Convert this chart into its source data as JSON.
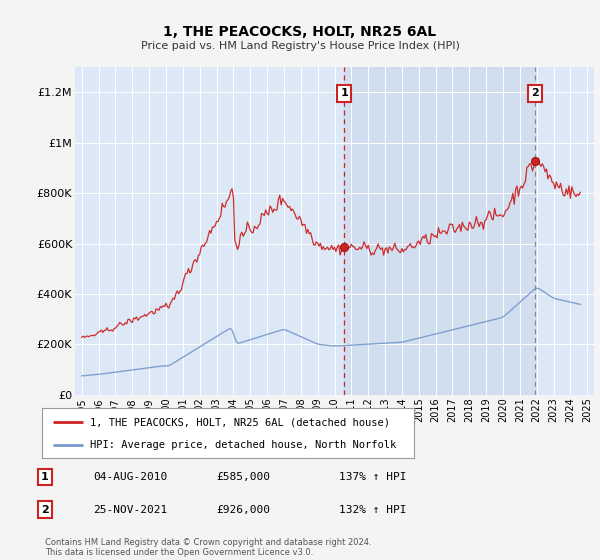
{
  "title": "1, THE PEACOCKS, HOLT, NR25 6AL",
  "subtitle": "Price paid vs. HM Land Registry's House Price Index (HPI)",
  "ylabel_ticks": [
    "£0",
    "£200K",
    "£400K",
    "£600K",
    "£800K",
    "£1M",
    "£1.2M"
  ],
  "ylabel_values": [
    0,
    200000,
    400000,
    600000,
    800000,
    1000000,
    1200000
  ],
  "ylim": [
    0,
    1300000
  ],
  "sale_color": "#cc2222",
  "hpi_color": "#7799cc",
  "fig_bg": "#f4f4f4",
  "plot_bg": "#dce8f5",
  "legend_label_sale": "1, THE PEACOCKS, HOLT, NR25 6AL (detached house)",
  "legend_label_hpi": "HPI: Average price, detached house, North Norfolk",
  "sale1_date_label": "04-AUG-2010",
  "sale1_price_label": "£585,000",
  "sale1_hpi_label": "137% ↑ HPI",
  "sale2_date_label": "25-NOV-2021",
  "sale2_price_label": "£926,000",
  "sale2_hpi_label": "132% ↑ HPI",
  "footnote": "Contains HM Land Registry data © Crown copyright and database right 2024.\nThis data is licensed under the Open Government Licence v3.0.",
  "sale1_x": 2010.58,
  "sale1_y": 585000,
  "sale2_x": 2021.9,
  "sale2_y": 926000,
  "dashed_line1_x": 2010.58,
  "dashed_line2_x": 2021.9,
  "xlim_left": 1994.6,
  "xlim_right": 2025.4
}
